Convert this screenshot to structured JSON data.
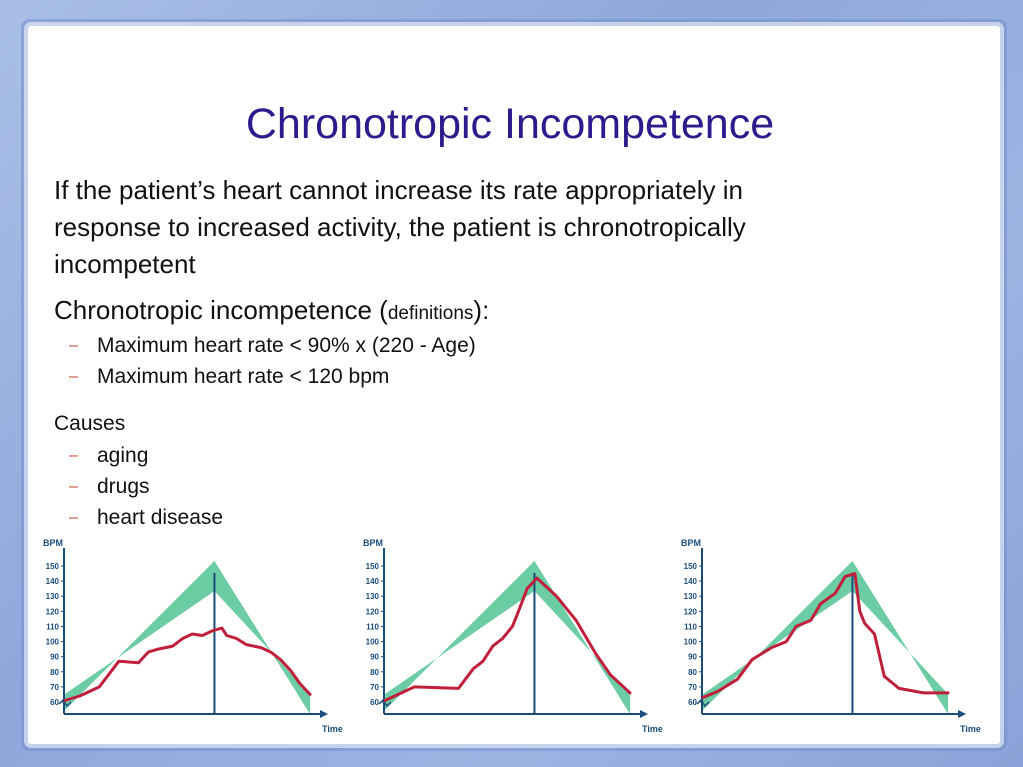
{
  "slide": {
    "title": "Chronotropic Incompetence",
    "intro": "If the patient’s heart cannot increase its rate appropriately in response to increased activity, the patient is chronotropically incompetent",
    "definitions_heading_prefix": "Chronotropic incompetence (",
    "definitions_heading_small": "definitions",
    "definitions_heading_suffix": "):",
    "definitions": [
      "Maximum heart rate < 90% x (220 - Age)",
      "Maximum heart rate < 120 bpm"
    ],
    "causes_heading": "Causes",
    "causes": [
      "aging",
      "drugs",
      "heart disease"
    ],
    "bullet_marker": "–",
    "colors": {
      "title": "#2e1a8c",
      "bullet": "#d04a3a",
      "band": "#5cc79a",
      "measured_line": "#c01f3c",
      "axis": "#1b4d7a"
    }
  },
  "chart_data": [
    {
      "type": "line",
      "ylabel": "BPM",
      "xlabel": "Time",
      "yticks": [
        60,
        70,
        80,
        90,
        100,
        110,
        120,
        130,
        140,
        150
      ],
      "ylim": [
        60,
        150
      ],
      "expected_band_peak": 148,
      "series": [
        {
          "x": [
            0,
            0.06,
            0.14,
            0.22,
            0.3,
            0.34,
            0.38,
            0.44,
            0.48,
            0.52,
            0.56,
            0.6,
            0.64,
            0.66,
            0.7,
            0.74,
            0.8,
            0.84,
            0.88,
            0.92,
            0.96,
            1.0
          ],
          "values": [
            61,
            64,
            70,
            87,
            86,
            93,
            95,
            97,
            102,
            105,
            104,
            107,
            109,
            104,
            102,
            98,
            96,
            93,
            88,
            81,
            72,
            65
          ]
        }
      ]
    },
    {
      "type": "line",
      "ylabel": "BPM",
      "xlabel": "Time",
      "yticks": [
        60,
        70,
        80,
        90,
        100,
        110,
        120,
        130,
        140,
        150
      ],
      "ylim": [
        60,
        150
      ],
      "expected_band_peak": 148,
      "series": [
        {
          "x": [
            0,
            0.12,
            0.3,
            0.36,
            0.4,
            0.44,
            0.48,
            0.52,
            0.54,
            0.58,
            0.62,
            0.64,
            0.7,
            0.78,
            0.86,
            0.92,
            1.0
          ],
          "values": [
            61,
            70,
            69,
            82,
            87,
            97,
            102,
            110,
            118,
            135,
            142,
            139,
            130,
            114,
            92,
            78,
            66
          ]
        }
      ]
    },
    {
      "type": "line",
      "ylabel": "BPM",
      "xlabel": "Time",
      "yticks": [
        60,
        70,
        80,
        90,
        100,
        110,
        120,
        130,
        140,
        150
      ],
      "ylim": [
        60,
        150
      ],
      "expected_band_peak": 148,
      "series": [
        {
          "x": [
            0,
            0.06,
            0.14,
            0.2,
            0.28,
            0.34,
            0.38,
            0.44,
            0.48,
            0.54,
            0.58,
            0.62,
            0.64,
            0.66,
            0.7,
            0.74,
            0.8,
            0.9,
            1.0
          ],
          "values": [
            63,
            67,
            75,
            88,
            96,
            100,
            110,
            114,
            125,
            132,
            143,
            145,
            120,
            112,
            105,
            77,
            69,
            66,
            66
          ]
        }
      ]
    }
  ]
}
